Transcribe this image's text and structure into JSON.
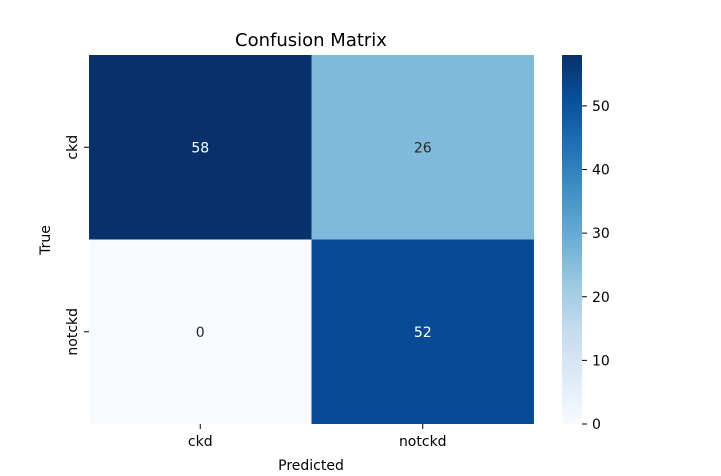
{
  "chart_data": {
    "type": "heatmap",
    "title": "Confusion Matrix",
    "xlabel": "Predicted",
    "ylabel": "True",
    "x_categories": [
      "ckd",
      "notckd"
    ],
    "y_categories": [
      "ckd",
      "notckd"
    ],
    "values": [
      [
        58,
        26
      ],
      [
        0,
        52
      ]
    ],
    "colormap": "Blues",
    "colorbar": {
      "range": [
        0,
        58
      ],
      "ticks": [
        0,
        10,
        20,
        30,
        40,
        50
      ]
    },
    "grid": false,
    "legend": "colorbar-right"
  }
}
